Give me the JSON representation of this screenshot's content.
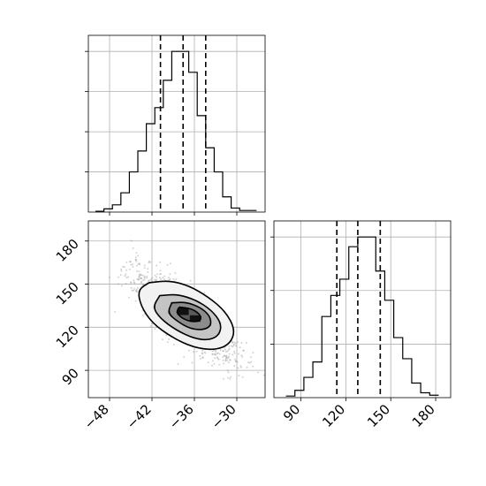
{
  "chart_data": {
    "type": "corner",
    "grid": true,
    "parameters": [
      "p1",
      "p2"
    ],
    "panels": [
      {
        "name": "marginal-p1",
        "type": "histogram",
        "xlim": [
          -51,
          -26
        ],
        "bin_edges": [
          -50,
          -48.8,
          -47.6,
          -46.4,
          -45.2,
          -44,
          -42.8,
          -41.6,
          -40.4,
          -39.2,
          -38,
          -36.8,
          -35.6,
          -34.4,
          -33.2,
          -32,
          -30.8,
          -29.6,
          -28.4,
          -27.2
        ],
        "counts": [
          0.005,
          0.02,
          0.045,
          0.12,
          0.25,
          0.38,
          0.55,
          0.65,
          0.82,
          1.0,
          1.0,
          0.87,
          0.6,
          0.4,
          0.25,
          0.095,
          0.025,
          0.01,
          0.01
        ],
        "quantiles": [
          -40.8,
          -37.6,
          -34.4
        ]
      },
      {
        "name": "marginal-p2",
        "type": "histogram",
        "xlim": [
          72,
          190
        ],
        "bin_edges": [
          80,
          86,
          92,
          98,
          104,
          110,
          116,
          122,
          128,
          134,
          140,
          146,
          152,
          158,
          164,
          170,
          176,
          182
        ],
        "counts": [
          0.01,
          0.045,
          0.125,
          0.22,
          0.5,
          0.63,
          0.73,
          0.93,
          0.99,
          0.99,
          0.78,
          0.6,
          0.37,
          0.24,
          0.09,
          0.03,
          0.015
        ],
        "quantiles": [
          114,
          128,
          143
        ]
      },
      {
        "name": "joint-p1-p2",
        "type": "density",
        "xlim": [
          -51,
          -26
        ],
        "ylim": [
          71,
          194
        ],
        "mean": [
          -37.5,
          128
        ],
        "xticks": [
          -48,
          -42,
          -36,
          -30
        ],
        "yticks": [
          90,
          120,
          150,
          180
        ],
        "contour_levels": [
          [
            [
              -42.4,
              151
            ],
            [
              -39.6,
              152.5
            ],
            [
              -36.8,
              149
            ],
            [
              -34,
              141
            ],
            [
              -31.6,
              131
            ],
            [
              -30.2,
              118
            ],
            [
              -31.0,
              108
            ],
            [
              -33.2,
              104
            ],
            [
              -36.2,
              106
            ],
            [
              -39.2,
              113
            ],
            [
              -42,
              123
            ],
            [
              -43.6,
              135
            ],
            [
              -44,
              146
            ]
          ],
          [
            [
              -40.9,
              142
            ],
            [
              -38.4,
              143
            ],
            [
              -35.8,
              139
            ],
            [
              -33.6,
              132
            ],
            [
              -32.2,
              123
            ],
            [
              -32.4,
              115
            ],
            [
              -33.8,
              111
            ],
            [
              -36.0,
              112
            ],
            [
              -38.6,
              118
            ],
            [
              -40.8,
              126
            ],
            [
              -41.9,
              134
            ]
          ],
          [
            [
              -39.2,
              137
            ],
            [
              -37.2,
              137.5
            ],
            [
              -35.2,
              134
            ],
            [
              -33.8,
              128
            ],
            [
              -33.6,
              121
            ],
            [
              -34.8,
              118
            ],
            [
              -36.6,
              119
            ],
            [
              -38.4,
              124
            ],
            [
              -39.8,
              130
            ]
          ],
          [
            [
              -38.1,
              134
            ],
            [
              -36.4,
              133
            ],
            [
              -35.2,
              129
            ],
            [
              -35.0,
              125
            ],
            [
              -36.2,
              123.5
            ],
            [
              -37.7,
              126
            ],
            [
              -38.6,
              130.5
            ]
          ]
        ]
      }
    ]
  }
}
